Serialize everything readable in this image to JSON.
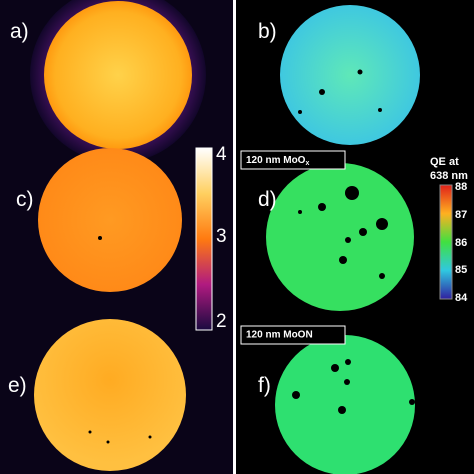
{
  "panels": [
    {
      "label": "a)"
    },
    {
      "label": "b)"
    },
    {
      "label": "c)"
    },
    {
      "label": "d)"
    },
    {
      "label": "e)"
    },
    {
      "label": "f)"
    }
  ],
  "sample_labels": [
    {
      "text": "120 nm MoO",
      "subscript": "x"
    },
    {
      "text": "120 nm MoON"
    }
  ],
  "el_colorbar": {
    "ticks": [
      "4",
      "3",
      "2"
    ]
  },
  "qe_colorbar": {
    "title": [
      "QE at",
      "638 nm"
    ],
    "ticks": [
      "88",
      "87",
      "86",
      "85",
      "84"
    ]
  }
}
